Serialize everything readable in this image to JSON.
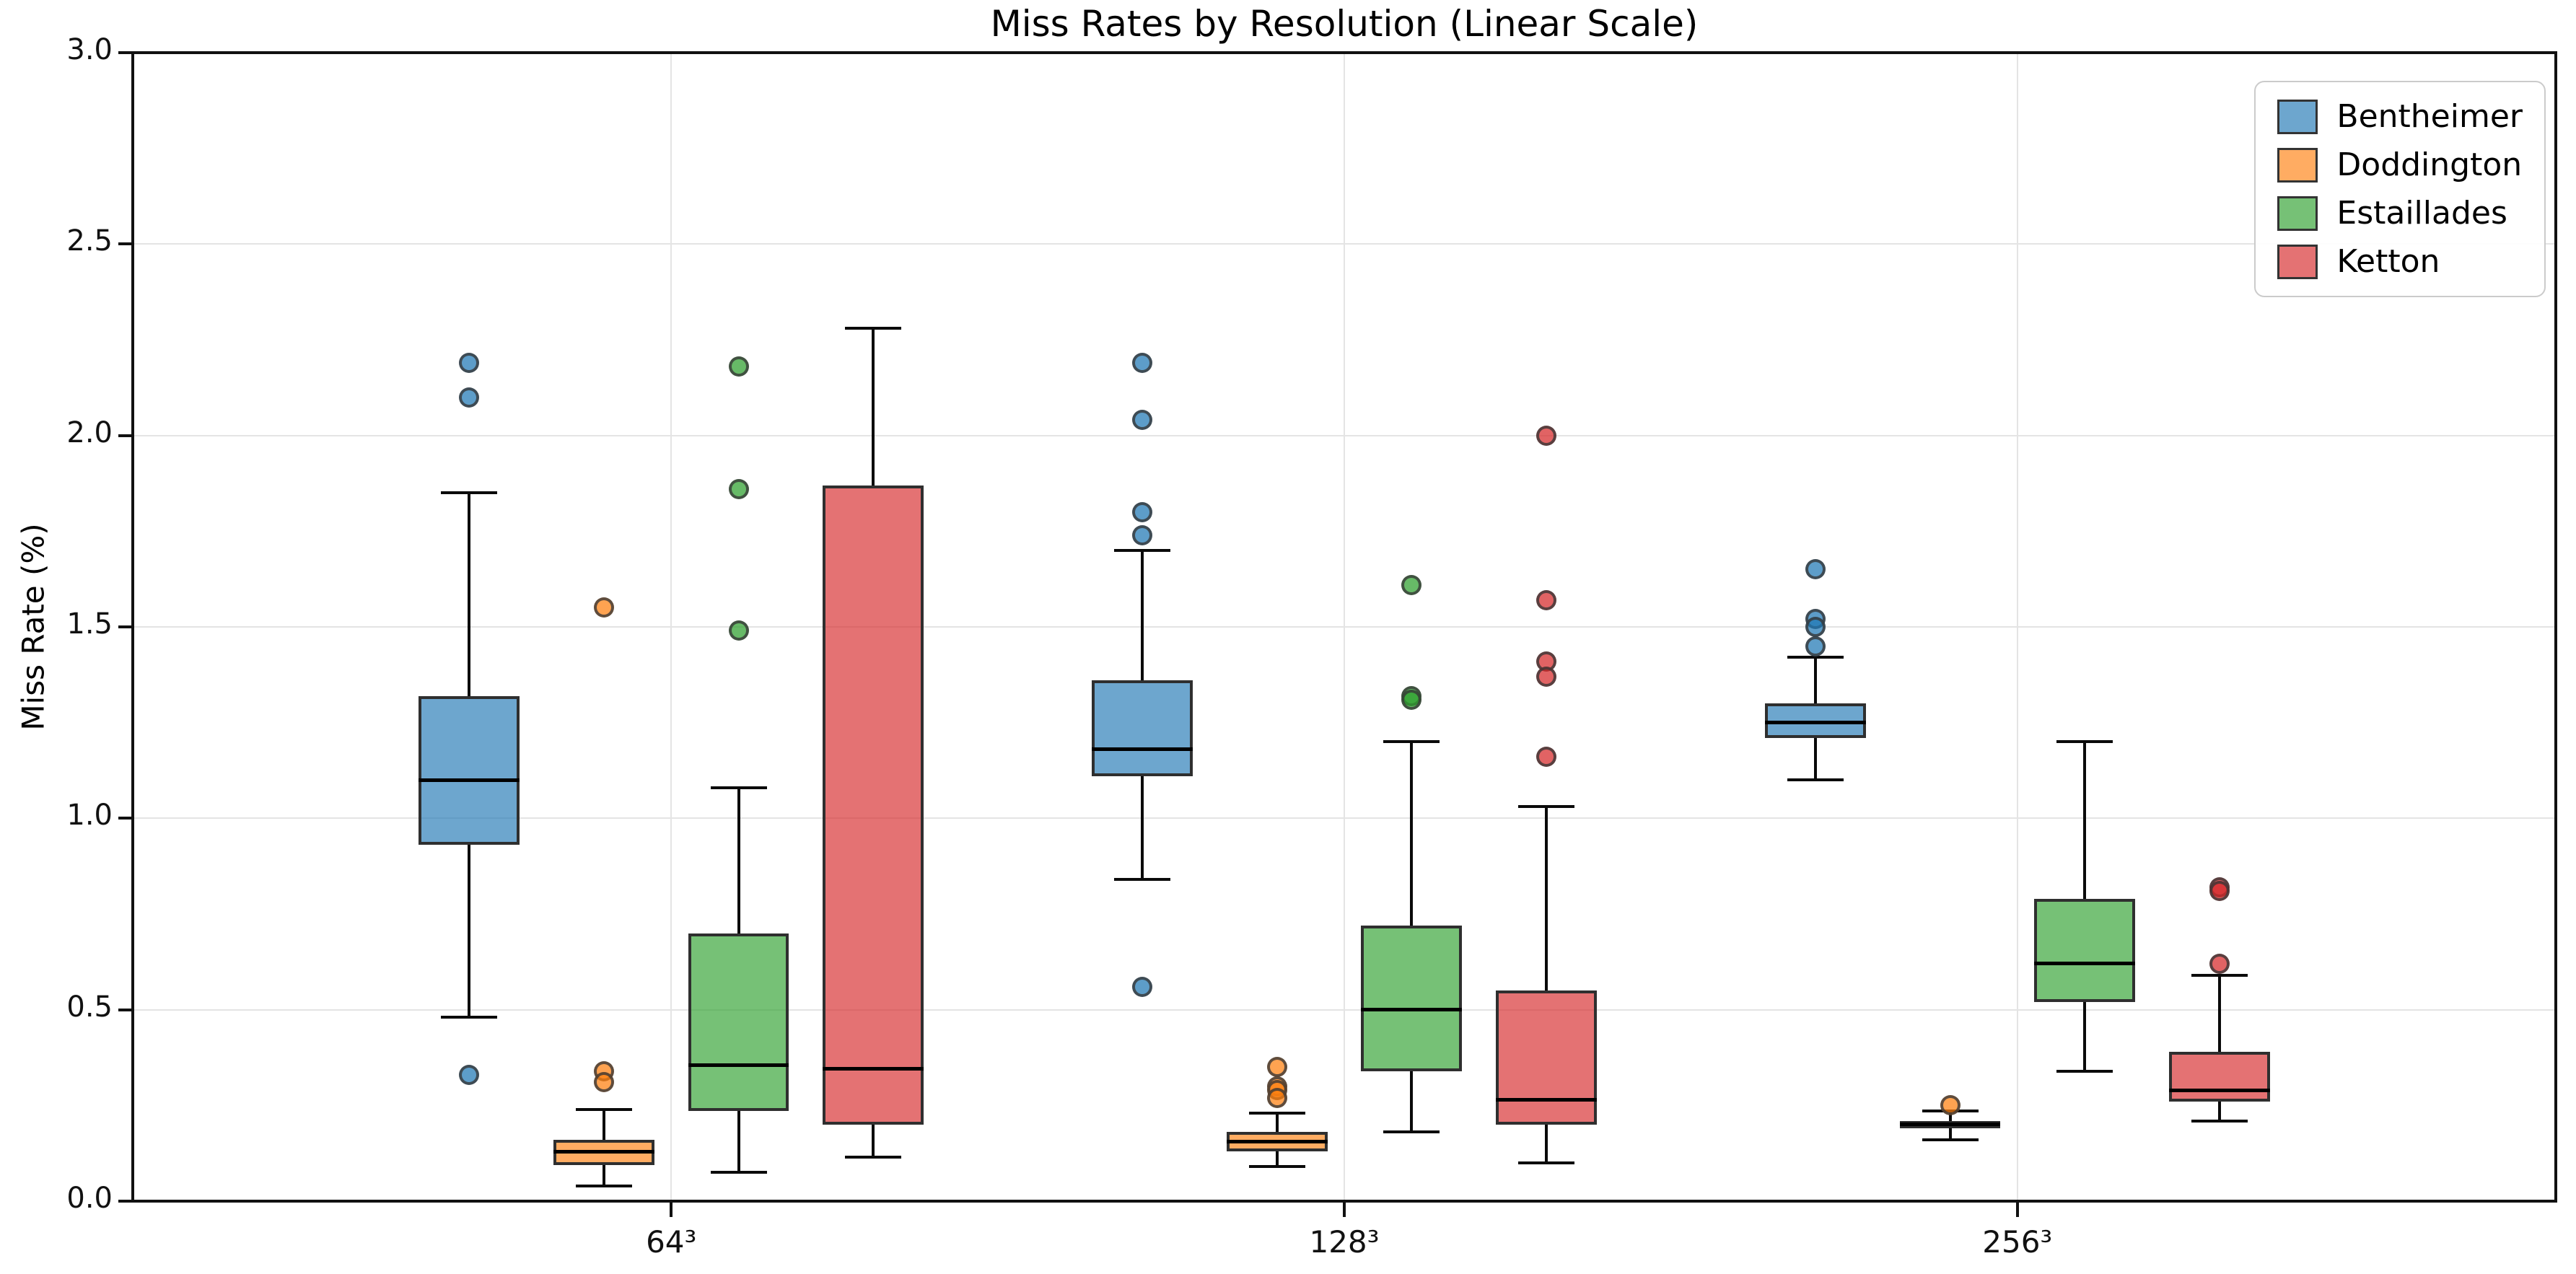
{
  "title": "Miss Rates by Resolution (Linear Scale)",
  "ylabel": "Miss Rate (%)",
  "xlabel": "",
  "y_tick_labels": [
    "0.0",
    "0.5",
    "1.0",
    "1.5",
    "2.0",
    "2.5",
    "3.0"
  ],
  "x_tick_labels": [
    "64³",
    "128³",
    "256³"
  ],
  "legend": [
    "Bentheimer",
    "Doddington",
    "Estaillades",
    "Ketton"
  ],
  "colors": {
    "bentheimer": "#1f77b4",
    "doddington": "#ff7f0e",
    "estaillades": "#2ca02c",
    "ketton": "#d62728",
    "box_edge": "#2f2f2f",
    "grid": "#e4e4e4",
    "spine": "#111111"
  },
  "chart_data": {
    "type": "box",
    "title": "Miss Rates by Resolution (Linear Scale)",
    "xlabel": "",
    "ylabel": "Miss Rate (%)",
    "categories": [
      "64³",
      "128³",
      "256³"
    ],
    "ylim": [
      0.0,
      3.0
    ],
    "y_ticks": [
      0.0,
      0.5,
      1.0,
      1.5,
      2.0,
      2.5,
      3.0
    ],
    "grid": true,
    "legend_position": "upper right",
    "series": [
      {
        "name": "Bentheimer",
        "color": "#1f77b4",
        "boxes": [
          {
            "category": "64³",
            "whislo": 0.48,
            "q1": 0.93,
            "med": 1.1,
            "q3": 1.32,
            "whishi": 1.85,
            "fliers": [
              2.19,
              2.1,
              0.33
            ]
          },
          {
            "category": "128³",
            "whislo": 0.84,
            "q1": 1.11,
            "med": 1.18,
            "q3": 1.36,
            "whishi": 1.7,
            "fliers": [
              2.19,
              2.04,
              1.8,
              1.74,
              0.56
            ]
          },
          {
            "category": "256³",
            "whislo": 1.1,
            "q1": 1.21,
            "med": 1.25,
            "q3": 1.3,
            "whishi": 1.42,
            "fliers": [
              1.65,
              1.52,
              1.5,
              1.45
            ]
          }
        ]
      },
      {
        "name": "Doddington",
        "color": "#ff7f0e",
        "boxes": [
          {
            "category": "64³",
            "whislo": 0.04,
            "q1": 0.095,
            "med": 0.13,
            "q3": 0.16,
            "whishi": 0.24,
            "fliers": [
              1.55,
              0.34,
              0.31
            ]
          },
          {
            "category": "128³",
            "whislo": 0.09,
            "q1": 0.13,
            "med": 0.155,
            "q3": 0.18,
            "whishi": 0.23,
            "fliers": [
              0.35,
              0.3,
              0.29,
              0.27
            ]
          },
          {
            "category": "256³",
            "whislo": 0.16,
            "q1": 0.19,
            "med": 0.2,
            "q3": 0.21,
            "whishi": 0.235,
            "fliers": [
              0.25
            ]
          }
        ]
      },
      {
        "name": "Estaillades",
        "color": "#2ca02c",
        "boxes": [
          {
            "category": "64³",
            "whislo": 0.075,
            "q1": 0.235,
            "med": 0.355,
            "q3": 0.7,
            "whishi": 1.08,
            "fliers": [
              2.18,
              1.86,
              1.49
            ]
          },
          {
            "category": "128³",
            "whislo": 0.18,
            "q1": 0.34,
            "med": 0.5,
            "q3": 0.72,
            "whishi": 1.2,
            "fliers": [
              1.61,
              1.32,
              1.31
            ]
          },
          {
            "category": "256³",
            "whislo": 0.34,
            "q1": 0.52,
            "med": 0.62,
            "q3": 0.79,
            "whishi": 1.2,
            "fliers": []
          }
        ]
      },
      {
        "name": "Ketton",
        "color": "#d62728",
        "boxes": [
          {
            "category": "64³",
            "whislo": 0.115,
            "q1": 0.2,
            "med": 0.345,
            "q3": 1.87,
            "whishi": 2.28,
            "fliers": []
          },
          {
            "category": "128³",
            "whislo": 0.1,
            "q1": 0.2,
            "med": 0.265,
            "q3": 0.55,
            "whishi": 1.03,
            "fliers": [
              2.0,
              1.57,
              1.41,
              1.37,
              1.16
            ]
          },
          {
            "category": "256³",
            "whislo": 0.21,
            "q1": 0.26,
            "med": 0.29,
            "q3": 0.39,
            "whishi": 0.59,
            "fliers": [
              0.82,
              0.81,
              0.62
            ]
          }
        ]
      }
    ]
  }
}
